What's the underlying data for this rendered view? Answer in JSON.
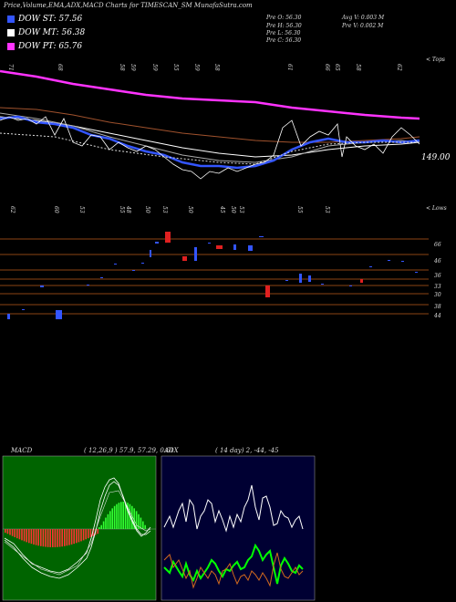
{
  "header": {
    "title": "Price,Volume,EMA,ADX,MACD Charts for TIMESCAN_SM MunafaSutra.com"
  },
  "legend": [
    {
      "label": "DOW ST: 57.56",
      "color": "#3355ff"
    },
    {
      "label": "DOW MT: 56.38",
      "color": "#ffffff"
    },
    {
      "label": "DOW PT: 65.76",
      "color": "#ff33ff"
    }
  ],
  "ohlc": {
    "open": "Pre  O: 56.30",
    "high": "Pre  H: 56.30",
    "low": "Pre  L: 56.30",
    "close": "Pre  C: 56.30",
    "avg_vol": "Avg V: 0.003  M",
    "pre_vol": "Pre  V: 0.002  M"
  },
  "top_label": "< Tops",
  "low_label": "< Lows",
  "price_label": "149.00",
  "macd": {
    "label": "MACD",
    "params": "( 12,26,9 ) 57.9,  57.29,  0.61"
  },
  "adx": {
    "label": "ADX",
    "params": "( 14  day) 2,  -44,  -45"
  },
  "chart_data": {
    "type": "line",
    "series": [
      {
        "name": "DOW PT",
        "color": "#ff33ff"
      },
      {
        "name": "DOW MT",
        "color": "#ffffff"
      },
      {
        "name": "DOW ST",
        "color": "#3355ff"
      }
    ],
    "tops_labels": [
      "71",
      "68",
      "58",
      "59",
      "59",
      "55",
      "59",
      "58",
      "61",
      "66",
      "65",
      "58",
      "62"
    ],
    "lows_labels": [
      "62",
      "60",
      "53",
      "55",
      "48",
      "50",
      "53",
      "50",
      "45",
      "50",
      "53",
      "55",
      "53"
    ],
    "price_axis_ticks": [
      "66",
      "46",
      "36",
      "33",
      "30",
      "38",
      "44"
    ],
    "volume_ticks_right": [
      "66",
      "46",
      "36",
      "33",
      "30",
      "38",
      "44"
    ]
  }
}
